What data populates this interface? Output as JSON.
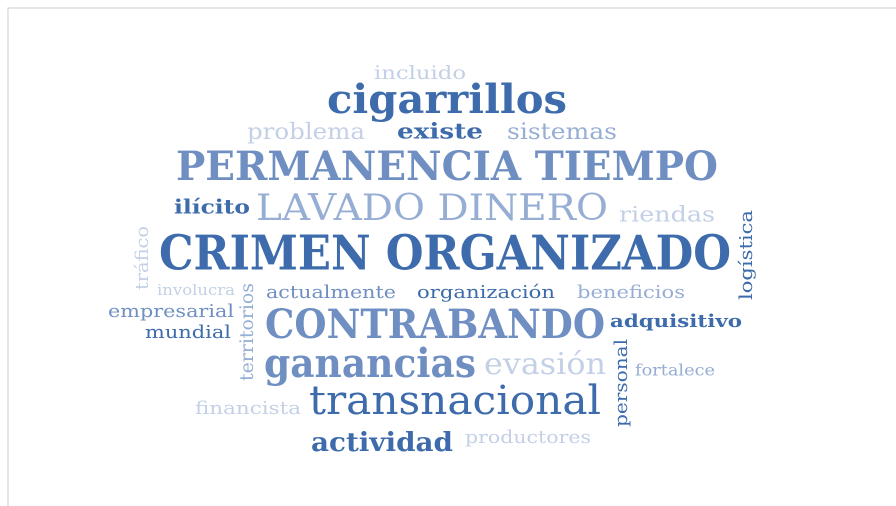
{
  "words": [
    "incluido",
    "cigarrillos",
    "problema",
    "existe",
    "sistemas",
    "PERMANENCIA TIEMPO",
    "ilícito",
    "LAVADO DINERO",
    "riendas",
    "CRIMEN ORGANIZADO",
    "tráfico",
    "logística",
    "involucra",
    "territorios",
    "actualmente",
    "organización",
    "beneficios",
    "empresarial",
    "mundial",
    "CONTRABANDO",
    "adquisitivo",
    "ganancias",
    "evasión",
    "personal",
    "fortalece",
    "financista",
    "transnacional",
    "actividad",
    "productores"
  ]
}
